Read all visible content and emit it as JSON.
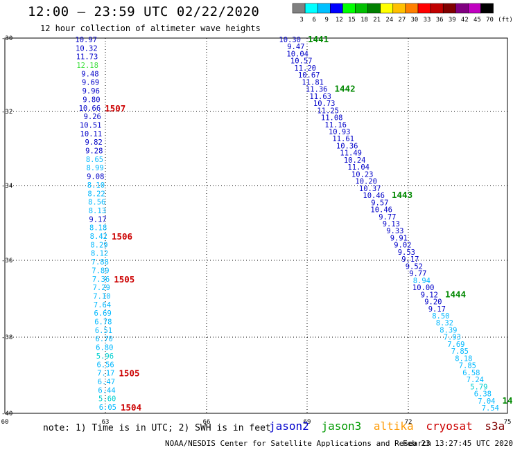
{
  "title": "12:00 – 23:59 UTC 02/22/2020",
  "subtitle": "12 hour collection of altimeter wave heights",
  "colorbar": {
    "levels": [
      "3",
      "6",
      "9",
      "12",
      "15",
      "18",
      "21",
      "24",
      "27",
      "30",
      "33",
      "36",
      "39",
      "42",
      "45",
      "70"
    ],
    "unit": "(ft)",
    "colors": [
      "#808080",
      "#00ffff",
      "#00c0ff",
      "#0000ff",
      "#00ff00",
      "#00c000",
      "#008000",
      "#ffff00",
      "#ffc000",
      "#ff8000",
      "#ff0000",
      "#c00000",
      "#800000",
      "#800080",
      "#c000c0",
      "#000000"
    ]
  },
  "axes": {
    "lat_labels": [
      "-30",
      "-32",
      "-34",
      "-36",
      "-38",
      "-40"
    ],
    "lon_labels": [
      "60",
      "63",
      "66",
      "69",
      "72",
      "75"
    ]
  },
  "note": "note:  1) Time is in UTC; 2) SWH is in feet",
  "legend": [
    {
      "label": "jason2",
      "color": "#0000cc"
    },
    {
      "label": "jason3",
      "color": "#009900"
    },
    {
      "label": "altika",
      "color": "#ff9900"
    },
    {
      "label": "cryosat",
      "color": "#cc0000"
    },
    {
      "label": "s3a",
      "color": "#800000"
    }
  ],
  "credit": "NOAA/NESDIS Center for Satellite Applications and Research",
  "credit_time": "Feb 23 13:27:45 UTC 2020",
  "left_track": {
    "values": [
      "10.97",
      "10.32",
      "11.73",
      "12.18",
      "9.48",
      "9.69",
      "9.96",
      "9.80",
      "10.66",
      "9.26",
      "10.51",
      "10.11",
      "9.82",
      "9.28",
      "8.65",
      "8.99",
      "9.08",
      "8.10",
      "8.22",
      "8.56",
      "8.13",
      "9.17",
      "8.18",
      "8.42",
      "8.29",
      "8.12",
      "7.88",
      "7.89",
      "7.36",
      "7.29",
      "7.10",
      "7.64",
      "6.69",
      "6.78",
      "6.51",
      "6.70",
      "6.80",
      "5.96",
      "6.56",
      "7.17",
      "6.47",
      "6.44",
      "5.60",
      "6.05"
    ],
    "times": [
      {
        "label": "1507",
        "index": 8
      },
      {
        "label": "1506",
        "index": 23
      },
      {
        "label": "1505",
        "index": 28
      },
      {
        "label": "1505",
        "index": 39
      },
      {
        "label": "1504",
        "index": 43
      }
    ]
  },
  "right_track": {
    "values": [
      "10.30",
      "9.47",
      "10.04",
      "10.57",
      "11.20",
      "10.67",
      "11.81",
      "11.36",
      "11.63",
      "10.73",
      "11.25",
      "11.08",
      "11.16",
      "10.93",
      "11.61",
      "10.36",
      "11.49",
      "10.24",
      "11.04",
      "10.23",
      "10.20",
      "10.37",
      "10.46",
      "9.57",
      "10.46",
      "9.77",
      "9.13",
      "9.33",
      "9.91",
      "9.02",
      "9.53",
      "9.17",
      "9.52",
      "9.77",
      "8.94",
      "10.00",
      "9.12",
      "9.20",
      "9.17",
      "8.50",
      "8.32",
      "8.39",
      "7.93",
      "7.69",
      "7.85",
      "8.18",
      "7.85",
      "6.58",
      "7.24",
      "5.79",
      "6.38",
      "7.04",
      "7.54"
    ],
    "times": [
      {
        "label": "1441",
        "index": 0
      },
      {
        "label": "1442",
        "index": 7
      },
      {
        "label": "1443",
        "index": 22
      },
      {
        "label": "1444",
        "index": 36
      },
      {
        "label": "14",
        "index": 51
      }
    ]
  }
}
